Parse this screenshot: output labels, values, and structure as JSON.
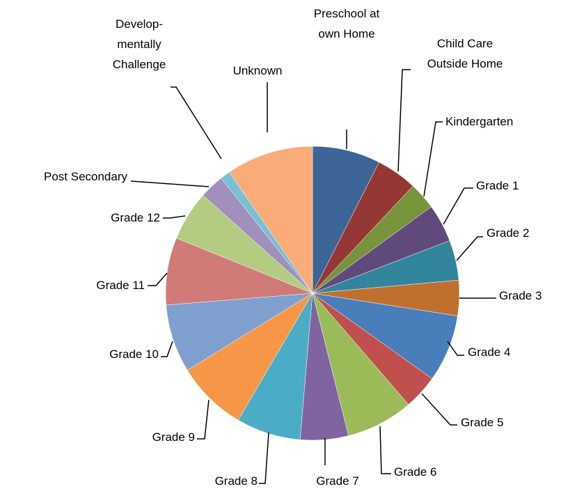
{
  "chart_data": {
    "type": "pie",
    "categories": [
      "Preschool at own Home",
      "Child Care Outside Home",
      "Kindergarten",
      "Grade 1",
      "Grade 2",
      "Grade 3",
      "Grade 4",
      "Grade 5",
      "Grade 6",
      "Grade 7",
      "Grade 8",
      "Grade 9",
      "Grade 10",
      "Grade 11",
      "Grade 12",
      "Post Secondary",
      "Develop-mentally Challenge",
      "Unknown"
    ],
    "values": [
      7.5,
      4.5,
      3.0,
      4.2,
      4.4,
      3.9,
      7.4,
      3.8,
      7.4,
      5.3,
      7.1,
      7.8,
      7.5,
      7.4,
      5.5,
      2.7,
      1.1,
      9.6
    ],
    "colors": [
      "#3c6496",
      "#953735",
      "#77933c",
      "#604a7b",
      "#31859c",
      "#c0702e",
      "#4a7ebb",
      "#c0504d",
      "#9bbb59",
      "#8064a2",
      "#4bacc6",
      "#f79646",
      "#7f9fcf",
      "#d07b78",
      "#b3cc82",
      "#a18fbc",
      "#78c0d4",
      "#f9ab78"
    ]
  }
}
